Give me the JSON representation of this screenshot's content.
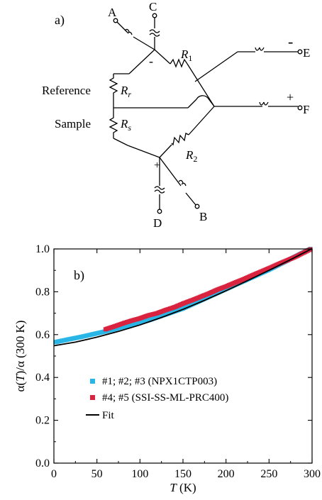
{
  "circuit": {
    "panel_label": "a)",
    "terminals": {
      "a": "A",
      "b": "B",
      "c": "C",
      "d": "D",
      "e": "E",
      "f": "F"
    },
    "resistors": {
      "r1": "R",
      "r1_sub": "1",
      "r2": "R",
      "r2_sub": "2",
      "rr": "R",
      "rr_sub": "r",
      "rs": "R",
      "rs_sub": "s"
    },
    "labels": {
      "reference": "Reference",
      "sample": "Sample"
    },
    "polarity": {
      "top_node": "-",
      "bottom_node": "+",
      "terminal_e": "-",
      "terminal_f": "+"
    }
  },
  "chart_data": {
    "type": "scatter",
    "panel_label": "b)",
    "xlabel_italic": "T",
    "xlabel_rest": " (K)",
    "ylabel_pre": "α(",
    "ylabel_italic": "T",
    "ylabel_post": ")/α (300 K)",
    "xlim": [
      0,
      300
    ],
    "ylim": [
      0.0,
      1.0
    ],
    "xticks": [
      "0",
      "50",
      "100",
      "150",
      "200",
      "250",
      "300"
    ],
    "yticks": [
      "0.0",
      "0.2",
      "0.4",
      "0.6",
      "0.8",
      "1.0"
    ],
    "legend_position": "center",
    "series": [
      {
        "name": "#1; #2; #3 (NPX1CTP003)",
        "color": "#29b6e6",
        "marker": "square",
        "x": [
          2,
          10,
          20,
          30,
          40,
          50,
          60,
          70,
          80,
          90,
          100,
          110,
          150,
          200,
          250,
          298
        ],
        "y": [
          0.565,
          0.572,
          0.58,
          0.588,
          0.597,
          0.606,
          0.615,
          0.625,
          0.635,
          0.645,
          0.656,
          0.667,
          0.722,
          0.813,
          0.903,
          1.0
        ]
      },
      {
        "name": "#4; #5 (SSI-SS-ML-PRC400)",
        "color": "#d9233f",
        "marker": "square",
        "x": [
          60,
          70,
          80,
          90,
          100,
          110,
          120,
          130,
          140,
          150,
          160,
          170,
          180,
          190,
          200,
          210,
          220,
          230,
          240,
          250,
          260,
          270,
          280,
          290,
          298
        ],
        "y": [
          0.625,
          0.638,
          0.652,
          0.665,
          0.676,
          0.69,
          0.7,
          0.715,
          0.728,
          0.745,
          0.76,
          0.776,
          0.792,
          0.81,
          0.825,
          0.842,
          0.858,
          0.876,
          0.893,
          0.91,
          0.928,
          0.945,
          0.962,
          0.982,
          0.998
        ]
      },
      {
        "name": "Fit",
        "color": "#000000",
        "line": true,
        "x": [
          0,
          25,
          50,
          75,
          100,
          125,
          150,
          175,
          200,
          225,
          250,
          275,
          300
        ],
        "y": [
          0.548,
          0.565,
          0.588,
          0.615,
          0.645,
          0.68,
          0.718,
          0.76,
          0.805,
          0.852,
          0.9,
          0.95,
          1.002
        ]
      }
    ]
  }
}
